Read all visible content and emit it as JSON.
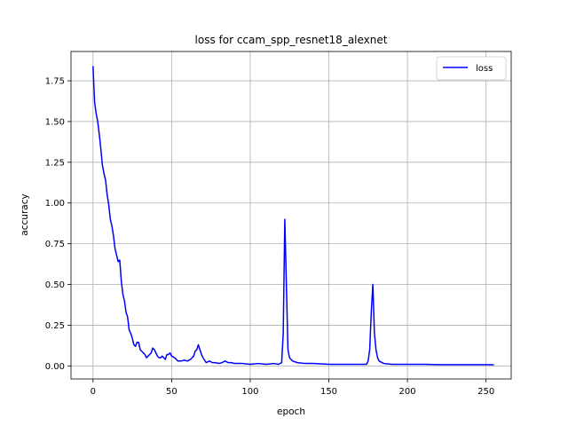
{
  "chart_data": {
    "type": "line",
    "title": "loss for ccam_spp_resnet18_alexnet",
    "xlabel": "epoch",
    "ylabel": "accuracy",
    "xlim": [
      -14,
      266
    ],
    "ylim": [
      -0.08,
      1.93
    ],
    "xticks": [
      0,
      50,
      100,
      150,
      200,
      250
    ],
    "xtick_labels": [
      "0",
      "50",
      "100",
      "150",
      "200",
      "250"
    ],
    "yticks": [
      0.0,
      0.25,
      0.5,
      0.75,
      1.0,
      1.25,
      1.5,
      1.75
    ],
    "ytick_labels": [
      "0.00",
      "0.25",
      "0.50",
      "0.75",
      "1.00",
      "1.25",
      "1.50",
      "1.75"
    ],
    "grid": true,
    "legend": {
      "position": "upper right",
      "entries": [
        {
          "label": "loss",
          "color": "#0000ff"
        }
      ]
    },
    "series": [
      {
        "name": "loss",
        "color": "#0000ff",
        "x": [
          0,
          1,
          2,
          3,
          4,
          5,
          6,
          7,
          8,
          9,
          10,
          11,
          12,
          13,
          14,
          15,
          16,
          17,
          18,
          19,
          20,
          21,
          22,
          23,
          24,
          25,
          26,
          27,
          28,
          29,
          30,
          31,
          32,
          33,
          34,
          35,
          36,
          37,
          38,
          39,
          40,
          41,
          42,
          43,
          44,
          45,
          46,
          47,
          48,
          49,
          50,
          52,
          54,
          56,
          58,
          60,
          62,
          64,
          65,
          66,
          67,
          68,
          69,
          70,
          72,
          74,
          76,
          78,
          80,
          82,
          84,
          86,
          88,
          90,
          95,
          100,
          105,
          110,
          115,
          118,
          120,
          121,
          122,
          123,
          124,
          125,
          127,
          130,
          135,
          140,
          150,
          160,
          170,
          174,
          175,
          176,
          177,
          178,
          179,
          180,
          181,
          182,
          185,
          190,
          200,
          210,
          220,
          230,
          240,
          250,
          255
        ],
        "y": [
          1.84,
          1.62,
          1.55,
          1.5,
          1.42,
          1.33,
          1.23,
          1.18,
          1.14,
          1.05,
          0.99,
          0.9,
          0.86,
          0.8,
          0.72,
          0.68,
          0.64,
          0.65,
          0.52,
          0.44,
          0.4,
          0.33,
          0.3,
          0.22,
          0.2,
          0.17,
          0.13,
          0.12,
          0.145,
          0.145,
          0.1,
          0.09,
          0.08,
          0.07,
          0.05,
          0.06,
          0.07,
          0.08,
          0.11,
          0.1,
          0.08,
          0.06,
          0.05,
          0.05,
          0.06,
          0.05,
          0.04,
          0.07,
          0.07,
          0.08,
          0.06,
          0.05,
          0.03,
          0.03,
          0.035,
          0.03,
          0.04,
          0.06,
          0.09,
          0.1,
          0.13,
          0.1,
          0.07,
          0.05,
          0.02,
          0.03,
          0.02,
          0.02,
          0.015,
          0.02,
          0.03,
          0.02,
          0.02,
          0.015,
          0.015,
          0.01,
          0.015,
          0.01,
          0.015,
          0.01,
          0.02,
          0.2,
          0.9,
          0.5,
          0.1,
          0.05,
          0.03,
          0.02,
          0.015,
          0.015,
          0.01,
          0.01,
          0.01,
          0.01,
          0.03,
          0.1,
          0.33,
          0.5,
          0.2,
          0.1,
          0.05,
          0.03,
          0.015,
          0.01,
          0.01,
          0.01,
          0.008,
          0.008,
          0.008,
          0.008,
          0.007
        ]
      }
    ]
  }
}
